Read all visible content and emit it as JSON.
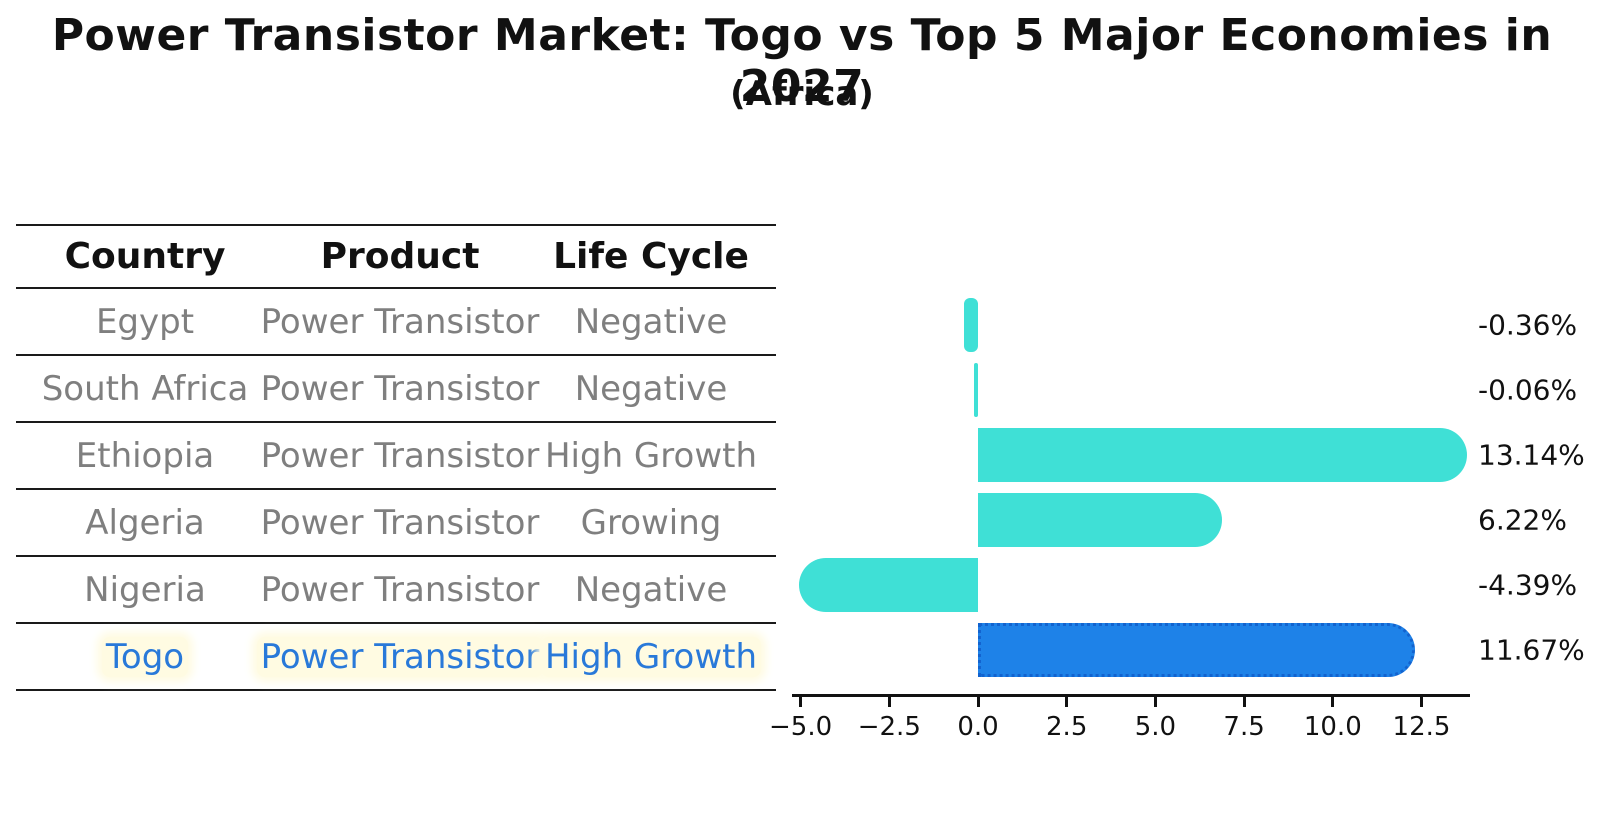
{
  "header": {
    "title": "Power Transistor Market: Togo vs Top 5 Major Economies in 2027",
    "subtitle": "(Africa)"
  },
  "table": {
    "columns": [
      "Country",
      "Product",
      "Life Cycle"
    ],
    "rows": [
      {
        "country": "Egypt",
        "product": "Power Transistor",
        "life_cycle": "Negative",
        "highlight": false
      },
      {
        "country": "South Africa",
        "product": "Power Transistor",
        "life_cycle": "Negative",
        "highlight": false
      },
      {
        "country": "Ethiopia",
        "product": "Power Transistor",
        "life_cycle": "High Growth",
        "highlight": false
      },
      {
        "country": "Algeria",
        "product": "Power Transistor",
        "life_cycle": "Growing",
        "highlight": false
      },
      {
        "country": "Nigeria",
        "product": "Power Transistor",
        "life_cycle": "Negative",
        "highlight": false
      },
      {
        "country": "Togo",
        "product": "Power Transistor",
        "life_cycle": "High Growth",
        "highlight": true
      }
    ]
  },
  "chart_data": {
    "type": "bar",
    "orientation": "horizontal",
    "title": "Power Transistor Market: Togo vs Top 5 Major Economies in 2027",
    "subtitle": "(Africa)",
    "categories": [
      "Egypt",
      "South Africa",
      "Ethiopia",
      "Algeria",
      "Nigeria",
      "Togo"
    ],
    "values": [
      -0.36,
      -0.06,
      13.14,
      6.22,
      -4.39,
      11.67
    ],
    "value_labels": [
      "-0.36%",
      "-0.06%",
      "13.14%",
      "6.22%",
      "-4.39%",
      "11.67%"
    ],
    "unit": "%",
    "x_ticks": [
      -5.0,
      -2.5,
      0.0,
      2.5,
      5.0,
      7.5,
      10.0,
      12.5
    ],
    "x_tick_labels": [
      "−5.0",
      "−2.5",
      "0.0",
      "2.5",
      "5.0",
      "7.5",
      "10.0",
      "12.5"
    ],
    "xlim": [
      -5.25,
      13.9
    ],
    "grid": false,
    "legend": "none",
    "bar_color": "#3fe0d6",
    "highlight_color": "#1e82e8",
    "highlight_border_color": "#1263cf",
    "highlight_index": 5
  },
  "colors": {
    "text_primary": "#111111",
    "text_muted": "#7f7f7f",
    "highlight_text": "#2979d9",
    "highlight_halo": "#fffbe2",
    "table_line": "#1a1a1a"
  }
}
